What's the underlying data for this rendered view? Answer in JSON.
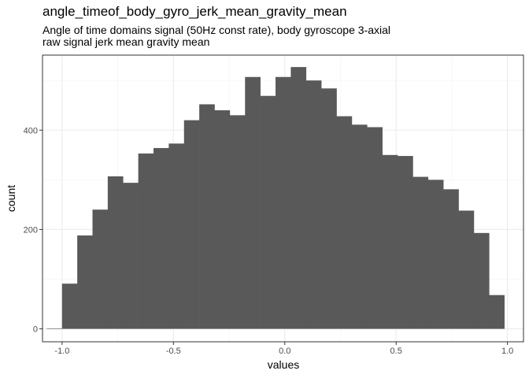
{
  "chart_data": {
    "type": "bar",
    "title": "angle_timeof_body_gyro_jerk_mean_gravity_mean",
    "subtitle_lines": [
      "Angle of time domains signal (50Hz const rate), body gyroscope 3-axial",
      "raw signal jerk mean gravity mean"
    ],
    "xlabel": "values",
    "ylabel": "count",
    "xlim": [
      -1.088,
      1.072
    ],
    "ylim": [
      -26,
      551
    ],
    "x_ticks": [
      -1.0,
      -0.5,
      0.0,
      0.5,
      1.0
    ],
    "x_tick_labels": [
      "-1.0",
      "-0.5",
      "0.0",
      "0.5",
      "1.0"
    ],
    "y_ticks": [
      0,
      200,
      400
    ],
    "y_tick_labels": [
      "0",
      "200",
      "400"
    ],
    "bin_width": 0.0685,
    "bin_left_edges": [
      -1.069,
      -1.0005,
      -0.932,
      -0.8635,
      -0.795,
      -0.7265,
      -0.658,
      -0.5895,
      -0.521,
      -0.4525,
      -0.384,
      -0.3155,
      -0.247,
      -0.1785,
      -0.11,
      -0.0415,
      0.027,
      0.0955,
      0.164,
      0.2325,
      0.301,
      0.3695,
      0.438,
      0.5065,
      0.575,
      0.6435,
      0.712,
      0.7805,
      0.849,
      0.9175
    ],
    "values": [
      1,
      91,
      188,
      240,
      307,
      294,
      353,
      364,
      373,
      420,
      452,
      440,
      430,
      507,
      469,
      507,
      527,
      500,
      484,
      428,
      411,
      406,
      350,
      348,
      306,
      300,
      281,
      238,
      193,
      68
    ],
    "bar_color": "#595959",
    "grid": true,
    "legend": "none"
  }
}
